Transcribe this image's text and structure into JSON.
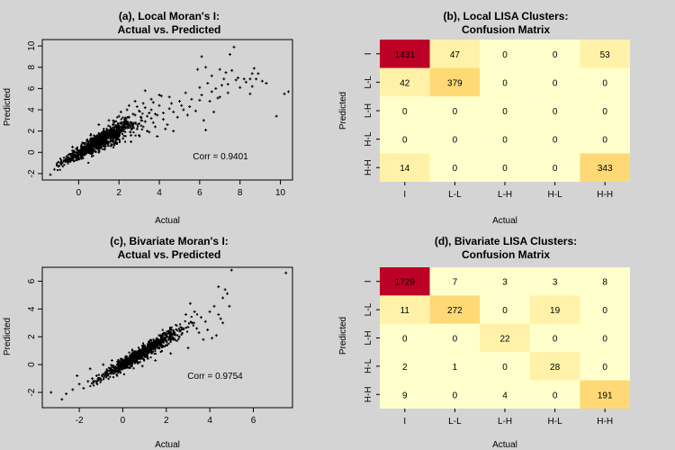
{
  "figure": {
    "background": "#d4d4d4",
    "panel_background": "#d4d4d4"
  },
  "chart_data": [
    {
      "type": "scatter",
      "title_line1": "(a), Local Moran's I:",
      "title_line2": "Actual vs. Predicted",
      "xlabel": "Actual",
      "ylabel": "Predicted",
      "xlim": [
        -1.8,
        10.6
      ],
      "ylim": [
        -2.6,
        10.6
      ],
      "xticks": [
        0,
        2,
        4,
        6,
        8,
        10
      ],
      "yticks": [
        -2,
        0,
        2,
        4,
        6,
        8,
        10
      ],
      "annotation": "Corr = 0.9401",
      "annotation_pos": [
        7.0,
        -0.05
      ],
      "points": [
        [
          -1.4,
          -2.1
        ],
        [
          -1.2,
          -1.6
        ],
        [
          -0.9,
          -1.0
        ],
        [
          -0.6,
          -0.4
        ],
        [
          -0.4,
          -0.6
        ],
        [
          -0.2,
          -0.3
        ],
        [
          0.0,
          -0.1
        ],
        [
          0.2,
          0.2
        ],
        [
          0.3,
          -0.2
        ],
        [
          0.5,
          0.3
        ],
        [
          0.6,
          0.5
        ],
        [
          0.8,
          0.6
        ],
        [
          0.9,
          0.9
        ],
        [
          1.0,
          0.4
        ],
        [
          1.1,
          1.1
        ],
        [
          1.2,
          0.7
        ],
        [
          1.3,
          1.4
        ],
        [
          1.4,
          1.0
        ],
        [
          1.5,
          1.8
        ],
        [
          1.6,
          1.2
        ],
        [
          1.7,
          2.1
        ],
        [
          1.8,
          1.5
        ],
        [
          1.9,
          2.4
        ],
        [
          2.0,
          1.7
        ],
        [
          2.1,
          2.8
        ],
        [
          2.2,
          2.0
        ],
        [
          2.3,
          3.1
        ],
        [
          2.4,
          2.3
        ],
        [
          2.5,
          3.3
        ],
        [
          2.6,
          1.6
        ],
        [
          2.7,
          3.6
        ],
        [
          2.8,
          2.7
        ],
        [
          2.9,
          2.2
        ],
        [
          3.0,
          3.9
        ],
        [
          3.1,
          3.0
        ],
        [
          3.2,
          2.4
        ],
        [
          3.3,
          4.2
        ],
        [
          3.4,
          3.4
        ],
        [
          3.5,
          1.9
        ],
        [
          3.6,
          4.0
        ],
        [
          3.7,
          2.8
        ],
        [
          3.8,
          3.6
        ],
        [
          3.9,
          1.5
        ],
        [
          4.0,
          4.4
        ],
        [
          4.2,
          3.1
        ],
        [
          4.4,
          2.6
        ],
        [
          4.5,
          4.1
        ],
        [
          4.7,
          3.8
        ],
        [
          4.9,
          3.3
        ],
        [
          5.0,
          4.8
        ],
        [
          5.2,
          4.0
        ],
        [
          5.4,
          3.5
        ],
        [
          5.6,
          5.0
        ],
        [
          5.8,
          3.9
        ],
        [
          6.0,
          6.1
        ],
        [
          6.1,
          5.4
        ],
        [
          6.2,
          3.0
        ],
        [
          6.3,
          2.1
        ],
        [
          6.4,
          6.5
        ],
        [
          6.5,
          4.8
        ],
        [
          6.6,
          7.2
        ],
        [
          6.7,
          3.8
        ],
        [
          6.8,
          6.0
        ],
        [
          6.9,
          5.1
        ],
        [
          7.0,
          7.8
        ],
        [
          7.1,
          6.3
        ],
        [
          7.2,
          6.9
        ],
        [
          7.3,
          7.5
        ],
        [
          7.4,
          5.6
        ],
        [
          7.5,
          9.2
        ],
        [
          7.6,
          7.7
        ],
        [
          7.8,
          6.8
        ],
        [
          8.0,
          6.1
        ],
        [
          8.3,
          6.6
        ],
        [
          8.5,
          5.5
        ],
        [
          8.6,
          6.2
        ],
        [
          8.7,
          7.9
        ],
        [
          8.8,
          6.9
        ],
        [
          8.9,
          7.4
        ],
        [
          9.1,
          6.7
        ],
        [
          9.3,
          6.5
        ],
        [
          9.8,
          3.4
        ],
        [
          10.2,
          5.5
        ],
        [
          10.4,
          5.7
        ],
        [
          5.9,
          7.8
        ],
        [
          7.7,
          9.9
        ],
        [
          6.1,
          9.0
        ],
        [
          6.3,
          8.0
        ],
        [
          4.1,
          5.3
        ],
        [
          3.3,
          5.8
        ],
        [
          2.8,
          4.8
        ],
        [
          3.6,
          5.0
        ],
        [
          4.5,
          5.2
        ],
        [
          5.3,
          5.6
        ],
        [
          2.0,
          3.4
        ],
        [
          1.5,
          3.0
        ],
        [
          1.0,
          2.6
        ],
        [
          0.6,
          1.6
        ],
        [
          0.2,
          0.9
        ],
        [
          -0.3,
          0.5
        ],
        [
          0.4,
          0.0
        ],
        [
          0.7,
          0.2
        ],
        [
          1.0,
          0.0
        ],
        [
          1.3,
          0.3
        ],
        [
          1.6,
          0.6
        ],
        [
          1.9,
          0.9
        ],
        [
          2.2,
          1.3
        ],
        [
          2.6,
          1.0
        ],
        [
          3.0,
          1.6
        ],
        [
          3.4,
          2.0
        ],
        [
          3.8,
          2.4
        ],
        [
          4.3,
          2.2
        ],
        [
          4.7,
          2.0
        ],
        [
          2.4,
          4.0
        ],
        [
          2.9,
          4.3
        ],
        [
          3.2,
          4.6
        ],
        [
          3.7,
          4.7
        ],
        [
          4.0,
          5.4
        ],
        [
          1.2,
          1.9
        ],
        [
          1.4,
          2.2
        ],
        [
          1.7,
          2.6
        ],
        [
          2.1,
          3.8
        ],
        [
          2.5,
          4.4
        ],
        [
          2.8,
          3.5
        ],
        [
          3.1,
          3.3
        ],
        [
          3.5,
          3.7
        ],
        [
          0.8,
          1.3
        ],
        [
          1.1,
          1.6
        ],
        [
          1.8,
          2.9
        ],
        [
          2.3,
          2.6
        ],
        [
          2.7,
          2.4
        ],
        [
          3.0,
          2.7
        ],
        [
          3.3,
          2.9
        ],
        [
          3.6,
          3.2
        ],
        [
          3.9,
          3.5
        ],
        [
          4.2,
          3.7
        ],
        [
          4.6,
          4.6
        ],
        [
          5.1,
          4.4
        ],
        [
          5.5,
          4.3
        ],
        [
          6.0,
          4.9
        ],
        [
          6.6,
          5.7
        ],
        [
          7.0,
          5.2
        ],
        [
          7.4,
          6.4
        ],
        [
          7.9,
          7.0
        ],
        [
          8.2,
          6.9
        ],
        [
          8.5,
          6.9
        ],
        [
          8.6,
          7.4
        ]
      ],
      "cloud": {
        "cx": 1.0,
        "spread_x": 0.9,
        "min_x": -1.1,
        "max_x": 3.2,
        "slope": 1.05,
        "intercept": -0.1,
        "noise": 0.45,
        "n": 900
      }
    },
    {
      "type": "heatmap",
      "title_line1": "(b), Local LISA Clusters:",
      "title_line2": "Confusion Matrix",
      "xlabel": "Actual",
      "ylabel": "Predicted",
      "categories": [
        "I",
        "L-L",
        "L-H",
        "H-L",
        "H-H"
      ],
      "matrix": [
        [
          1431,
          47,
          0,
          0,
          53
        ],
        [
          42,
          379,
          0,
          0,
          0
        ],
        [
          0,
          0,
          0,
          0,
          0
        ],
        [
          0,
          0,
          0,
          0,
          0
        ],
        [
          14,
          0,
          0,
          0,
          343
        ]
      ],
      "colors": {
        "low": "#ffffcc",
        "mid1": "#fff2a8",
        "mid2": "#fed976",
        "high": "#bd0026"
      }
    },
    {
      "type": "scatter",
      "title_line1": "(c), Bivariate Moran's I:",
      "title_line2": "Actual vs. Predicted",
      "xlabel": "Actual",
      "ylabel": "Predicted",
      "xlim": [
        -3.7,
        7.8
      ],
      "ylim": [
        -3.1,
        7.0
      ],
      "xticks": [
        -2,
        0,
        2,
        4,
        6
      ],
      "yticks": [
        -2,
        0,
        2,
        4,
        6
      ],
      "annotation": "Corr = 0.9754",
      "annotation_pos": [
        4.2,
        -1.1
      ],
      "points": [
        [
          -3.3,
          -2.0
        ],
        [
          -2.8,
          -2.5
        ],
        [
          -2.6,
          -2.1
        ],
        [
          -2.3,
          -1.8
        ],
        [
          -2.0,
          -1.4
        ],
        [
          -1.8,
          -1.7
        ],
        [
          -1.6,
          -1.2
        ],
        [
          -1.4,
          -1.0
        ],
        [
          -1.2,
          -0.8
        ],
        [
          -1.0,
          -1.1
        ],
        [
          -0.8,
          -0.6
        ],
        [
          -0.6,
          -0.4
        ],
        [
          -0.4,
          -0.2
        ],
        [
          -0.2,
          -0.5
        ],
        [
          0.0,
          0.1
        ],
        [
          0.2,
          0.0
        ],
        [
          0.4,
          0.3
        ],
        [
          0.6,
          0.5
        ],
        [
          0.8,
          0.4
        ],
        [
          1.0,
          0.8
        ],
        [
          1.2,
          1.0
        ],
        [
          1.4,
          1.1
        ],
        [
          1.6,
          1.4
        ],
        [
          1.8,
          1.3
        ],
        [
          2.0,
          1.7
        ],
        [
          2.2,
          1.9
        ],
        [
          2.4,
          2.2
        ],
        [
          2.6,
          2.0
        ],
        [
          2.8,
          2.6
        ],
        [
          3.0,
          2.7
        ],
        [
          3.2,
          3.0
        ],
        [
          3.4,
          2.6
        ],
        [
          3.6,
          3.4
        ],
        [
          3.8,
          3.1
        ],
        [
          4.0,
          3.8
        ],
        [
          4.2,
          4.2
        ],
        [
          4.4,
          3.6
        ],
        [
          4.6,
          4.8
        ],
        [
          4.8,
          5.1
        ],
        [
          5.0,
          6.8
        ],
        [
          4.9,
          4.2
        ],
        [
          4.7,
          5.4
        ],
        [
          4.5,
          3.3
        ],
        [
          4.3,
          2.1
        ],
        [
          4.1,
          1.9
        ],
        [
          3.9,
          2.5
        ],
        [
          3.7,
          1.8
        ],
        [
          3.5,
          2.3
        ],
        [
          3.3,
          3.8
        ],
        [
          3.1,
          4.4
        ],
        [
          2.9,
          3.6
        ],
        [
          7.5,
          6.6
        ],
        [
          4.4,
          5.6
        ],
        [
          4.6,
          3.0
        ],
        [
          3.0,
          1.2
        ],
        [
          2.2,
          0.8
        ],
        [
          1.5,
          0.3
        ],
        [
          0.9,
          -0.1
        ],
        [
          -0.5,
          0.3
        ],
        [
          -0.9,
          0.0
        ],
        [
          -1.5,
          -0.3
        ],
        [
          -2.1,
          -0.8
        ]
      ],
      "cloud": {
        "cx": 0.8,
        "spread_x": 0.9,
        "min_x": -1.5,
        "max_x": 4.3,
        "slope": 0.95,
        "intercept": 0.0,
        "noise": 0.3,
        "n": 900
      }
    },
    {
      "type": "heatmap",
      "title_line1": "(d), Bivariate LISA Clusters:",
      "title_line2": "Confusion Matrix",
      "xlabel": "Actual",
      "ylabel": "Predicted",
      "categories": [
        "I",
        "L-L",
        "L-H",
        "H-L",
        "H-H"
      ],
      "matrix": [
        [
          1729,
          7,
          3,
          3,
          8
        ],
        [
          11,
          272,
          0,
          19,
          0
        ],
        [
          0,
          0,
          22,
          0,
          0
        ],
        [
          2,
          1,
          0,
          28,
          0
        ],
        [
          9,
          0,
          4,
          0,
          191
        ]
      ],
      "colors": {
        "low": "#ffffcc",
        "mid1": "#fff2a8",
        "mid2": "#fed976",
        "high": "#bd0026"
      }
    }
  ]
}
